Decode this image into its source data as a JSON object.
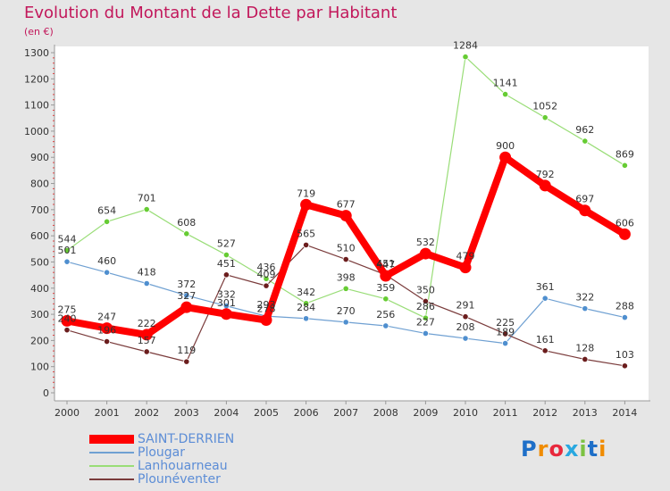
{
  "chart_data": {
    "type": "line",
    "title": "Evolution du Montant de la Dette par Habitant",
    "unit": "(en €)",
    "x": [
      "2000",
      "2001",
      "2002",
      "2003",
      "2004",
      "2005",
      "2006",
      "2007",
      "2008",
      "2009",
      "2010",
      "2011",
      "2012",
      "2013",
      "2014"
    ],
    "y_ticks": [
      0,
      100,
      200,
      300,
      400,
      500,
      600,
      700,
      800,
      900,
      1000,
      1100,
      1200,
      1300
    ],
    "ylim": [
      0,
      1300
    ],
    "grid": false,
    "legend_position": "bottom-left",
    "series": [
      {
        "name": "SAINT-DERRIEN",
        "color": "#ff0000",
        "marker": "#ff0000",
        "values": [
          275,
          247,
          222,
          327,
          301,
          278,
          719,
          677,
          447,
          532,
          479,
          900,
          792,
          697,
          606
        ]
      },
      {
        "name": "Plougar",
        "color": "#6fa0d2",
        "marker": "#4f8fcf",
        "values": [
          501,
          460,
          418,
          372,
          332,
          293,
          284,
          270,
          256,
          227,
          208,
          189,
          361,
          322,
          288
        ]
      },
      {
        "name": "Lanhouarneau",
        "color": "#99dd77",
        "marker": "#66cc33",
        "values": [
          544,
          654,
          701,
          608,
          527,
          436,
          342,
          398,
          359,
          286,
          1284,
          1141,
          1052,
          962,
          869
        ]
      },
      {
        "name": "Plounéventer",
        "color": "#7a3b3b",
        "marker": "#6b1d1d",
        "values": [
          240,
          196,
          157,
          119,
          451,
          409,
          565,
          510,
          451,
          350,
          291,
          225,
          161,
          128,
          103
        ]
      }
    ]
  },
  "logo": {
    "parts": [
      "Pro",
      "x",
      "iti"
    ],
    "colors": [
      "#1e6fc8",
      "#f08c00",
      "#e8283c",
      "#29a8e0",
      "#7cc242"
    ]
  }
}
